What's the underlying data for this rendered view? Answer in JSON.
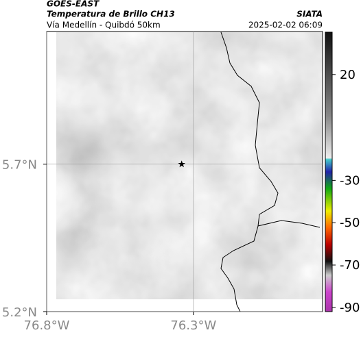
{
  "header": {
    "source": "GOES-EAST",
    "title": "Temperatura de Brillo CH13",
    "subtitle": "Vía Medellín - Quibdó 50km",
    "credit": "SIATA",
    "timestamp": "2025-02-02 06:09"
  },
  "map": {
    "xlim": [
      -76.8,
      -75.86
    ],
    "ylim": [
      5.2,
      6.15
    ],
    "xticks": [
      {
        "value": -76.8,
        "label": "76.8°W"
      },
      {
        "value": -76.3,
        "label": "76.3°W"
      }
    ],
    "yticks": [
      {
        "value": 5.2,
        "label": "5.2°N"
      },
      {
        "value": 5.7,
        "label": "5.7°N"
      }
    ],
    "marker": {
      "lon": -76.34,
      "lat": 5.7
    }
  },
  "colorbar": {
    "lim": [
      -92,
      40
    ],
    "ticks": [
      20,
      -30,
      -50,
      -70,
      -90
    ]
  }
}
